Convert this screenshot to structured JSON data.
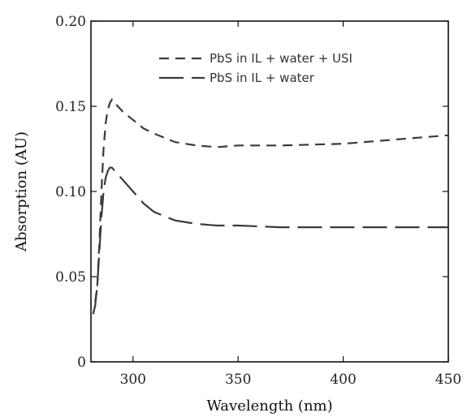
{
  "chart_data": {
    "type": "line",
    "xlabel": "Wavelength (nm)",
    "ylabel": "Absorption (AU)",
    "xlim": [
      280,
      450
    ],
    "ylim": [
      0,
      0.2
    ],
    "x_ticks": [
      300,
      350,
      400,
      450
    ],
    "x_tick_labels": [
      "300",
      "350",
      "400",
      "450"
    ],
    "y_ticks": [
      0,
      0.05,
      0.1,
      0.15,
      0.2
    ],
    "y_tick_labels": [
      "0",
      "0.05",
      "0.10",
      "0.15",
      "0.20"
    ],
    "grid": false,
    "legend_position": "top-right",
    "series": [
      {
        "name": "PbS in IL + water + USI",
        "dash": "short",
        "color": "#3a3a3a",
        "x": [
          282,
          283,
          284,
          285,
          286,
          287,
          288,
          289,
          290,
          292,
          295,
          300,
          305,
          310,
          320,
          330,
          340,
          350,
          370,
          400,
          420,
          450
        ],
        "y": [
          0.035,
          0.045,
          0.07,
          0.1,
          0.125,
          0.14,
          0.148,
          0.152,
          0.154,
          0.151,
          0.147,
          0.142,
          0.137,
          0.134,
          0.129,
          0.127,
          0.126,
          0.127,
          0.127,
          0.128,
          0.13,
          0.133
        ]
      },
      {
        "name": "PbS in IL + water",
        "dash": "long",
        "color": "#3a3a3a",
        "x": [
          281,
          282,
          283,
          284,
          285,
          286,
          287,
          288,
          289,
          290,
          292,
          295,
          300,
          305,
          310,
          320,
          330,
          340,
          350,
          370,
          400,
          420,
          450
        ],
        "y": [
          0.028,
          0.033,
          0.045,
          0.065,
          0.085,
          0.1,
          0.108,
          0.112,
          0.114,
          0.114,
          0.111,
          0.107,
          0.1,
          0.093,
          0.088,
          0.083,
          0.081,
          0.08,
          0.08,
          0.079,
          0.079,
          0.079,
          0.079
        ]
      }
    ]
  }
}
